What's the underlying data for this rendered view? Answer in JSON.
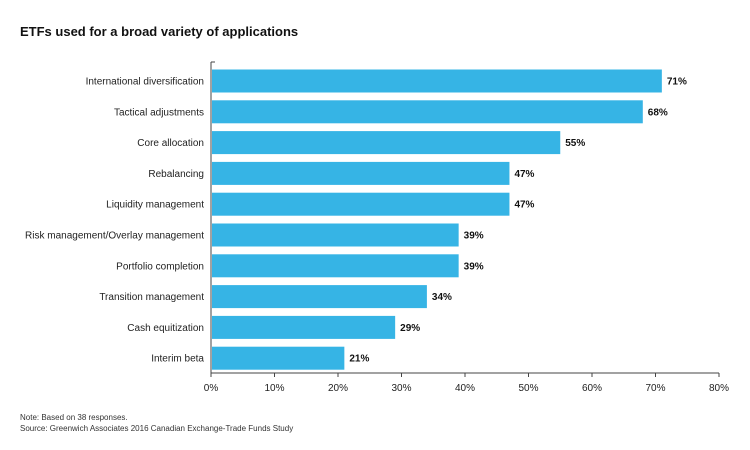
{
  "chart_data": {
    "type": "bar",
    "orientation": "horizontal",
    "title": "ETFs used for a broad variety of applications",
    "categories": [
      "International diversification",
      "Tactical adjustments",
      "Core allocation",
      "Rebalancing",
      "Liquidity management",
      "Risk management/Overlay management",
      "Portfolio completion",
      "Transition management",
      "Cash equitization",
      "Interim beta"
    ],
    "values": [
      71,
      68,
      55,
      47,
      47,
      39,
      39,
      34,
      29,
      21
    ],
    "value_labels": [
      "71%",
      "68%",
      "55%",
      "47%",
      "47%",
      "39%",
      "39%",
      "34%",
      "29%",
      "21%"
    ],
    "xlim": [
      0,
      80
    ],
    "xticks": [
      "0%",
      "10%",
      "20%",
      "30%",
      "40%",
      "50%",
      "60%",
      "70%",
      "80%"
    ],
    "bar_color": "#36b4e5",
    "grid": false
  },
  "footnotes": {
    "note": "Note: Based on 38 responses.",
    "source": "Source: Greenwich Associates 2016 Canadian Exchange-Trade Funds Study"
  }
}
